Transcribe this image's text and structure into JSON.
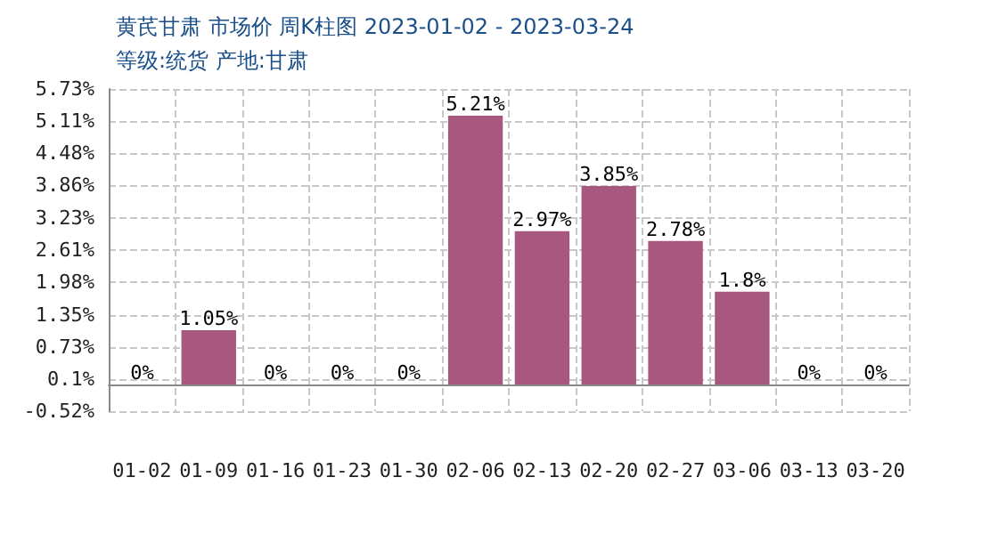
{
  "chart_data": {
    "type": "bar",
    "title": "黄芪甘肃 市场价 周K柱图 2023-01-02 - 2023-03-24",
    "subtitle": "等级:统货 产地:甘肃",
    "categories": [
      "01-02",
      "01-09",
      "01-16",
      "01-23",
      "01-30",
      "02-06",
      "02-13",
      "02-20",
      "02-27",
      "03-06",
      "03-13",
      "03-20"
    ],
    "values": [
      0,
      1.05,
      0,
      0,
      0,
      5.21,
      2.97,
      3.85,
      2.78,
      1.8,
      0,
      0
    ],
    "value_labels": [
      "0%",
      "1.05%",
      "0%",
      "0%",
      "0%",
      "5.21%",
      "2.97%",
      "3.85%",
      "2.78%",
      "1.8%",
      "0%",
      "0%"
    ],
    "color": "#a8587f",
    "ylim": [
      -0.52,
      5.73
    ],
    "yticks": [
      {
        "value": -0.52,
        "label": "-0.52%"
      },
      {
        "value": 0.1,
        "label": "0.1%"
      },
      {
        "value": 0.73,
        "label": "0.73%"
      },
      {
        "value": 1.35,
        "label": "1.35%"
      },
      {
        "value": 1.98,
        "label": "1.98%"
      },
      {
        "value": 2.61,
        "label": "2.61%"
      },
      {
        "value": 3.23,
        "label": "3.23%"
      },
      {
        "value": 3.86,
        "label": "3.86%"
      },
      {
        "value": 4.48,
        "label": "4.48%"
      },
      {
        "value": 5.11,
        "label": "5.11%"
      },
      {
        "value": 5.73,
        "label": "5.73%"
      }
    ],
    "grid": true
  }
}
